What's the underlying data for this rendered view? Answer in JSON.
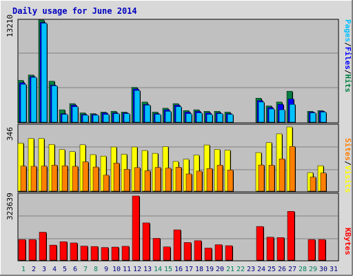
{
  "chart_data": {
    "type": "bar",
    "title": "Daily usage for June 2014",
    "colors": {
      "hits": "#008040",
      "files": "#0000ff",
      "pages": "#00c0ff",
      "visits": "#ffff00",
      "sites": "#ff8000",
      "kbytes": "#ff0000",
      "weekend_day": "#00805c",
      "weekday": "#000080",
      "panel_bg": "#c0c0c0",
      "frame_bg": "#d8d8d8"
    },
    "days": [
      {
        "label": "1",
        "weekend": true,
        "hits": 5400,
        "files": 5100,
        "pages": 4900,
        "visits": 259,
        "sites": 135,
        "kbytes": 104000
      },
      {
        "label": "2",
        "weekend": false,
        "hits": 6100,
        "files": 5900,
        "pages": 5800,
        "visits": 284,
        "sites": 134,
        "kbytes": 104000
      },
      {
        "label": "3",
        "weekend": false,
        "hits": 13210,
        "files": 12900,
        "pages": 12800,
        "visits": 284,
        "sites": 135,
        "kbytes": 141000
      },
      {
        "label": "4",
        "weekend": false,
        "hits": 5300,
        "files": 4800,
        "pages": 4700,
        "visits": 252,
        "sites": 140,
        "kbytes": 76000
      },
      {
        "label": "5",
        "weekend": false,
        "hits": 1600,
        "files": 1100,
        "pages": 1000,
        "visits": 224,
        "sites": 137,
        "kbytes": 93000
      },
      {
        "label": "6",
        "weekend": false,
        "hits": 2400,
        "files": 2200,
        "pages": 2000,
        "visits": 213,
        "sites": 134,
        "kbytes": 87000
      },
      {
        "label": "7",
        "weekend": true,
        "hits": 1200,
        "files": 1000,
        "pages": 900,
        "visits": 250,
        "sites": 158,
        "kbytes": 71000
      },
      {
        "label": "8",
        "weekend": true,
        "hits": 1100,
        "files": 1000,
        "pages": 900,
        "visits": 197,
        "sites": 130,
        "kbytes": 69000
      },
      {
        "label": "9",
        "weekend": false,
        "hits": 1300,
        "files": 1200,
        "pages": 1000,
        "visits": 189,
        "sites": 86,
        "kbytes": 64000
      },
      {
        "label": "10",
        "weekend": false,
        "hits": 1400,
        "files": 1200,
        "pages": 1100,
        "visits": 238,
        "sites": 151,
        "kbytes": 66000
      },
      {
        "label": "11",
        "weekend": false,
        "hits": 1300,
        "files": 1200,
        "pages": 1100,
        "visits": 199,
        "sites": 118,
        "kbytes": 70000
      },
      {
        "label": "12",
        "weekend": false,
        "hits": 4500,
        "files": 4300,
        "pages": 4100,
        "visits": 238,
        "sites": 127,
        "kbytes": 323639
      },
      {
        "label": "13",
        "weekend": false,
        "hits": 2600,
        "files": 2300,
        "pages": 2200,
        "visits": 219,
        "sites": 110,
        "kbytes": 188000
      },
      {
        "label": "14",
        "weekend": true,
        "hits": 1300,
        "files": 1100,
        "pages": 1000,
        "visits": 204,
        "sites": 128,
        "kbytes": 110000
      },
      {
        "label": "15",
        "weekend": true,
        "hits": 1800,
        "files": 1600,
        "pages": 1400,
        "visits": 240,
        "sites": 124,
        "kbytes": 67000
      },
      {
        "label": "16",
        "weekend": false,
        "hits": 2400,
        "files": 2200,
        "pages": 2000,
        "visits": 160,
        "sites": 129,
        "kbytes": 153000
      },
      {
        "label": "17",
        "weekend": false,
        "hits": 1500,
        "files": 1300,
        "pages": 1100,
        "visits": 172,
        "sites": 93,
        "kbytes": 89000
      },
      {
        "label": "18",
        "weekend": false,
        "hits": 1600,
        "files": 1400,
        "pages": 1200,
        "visits": 194,
        "sites": 108,
        "kbytes": 98000
      },
      {
        "label": "19",
        "weekend": false,
        "hits": 1400,
        "files": 1200,
        "pages": 1000,
        "visits": 249,
        "sites": 122,
        "kbytes": 61000
      },
      {
        "label": "20",
        "weekend": false,
        "hits": 1400,
        "files": 1200,
        "pages": 1100,
        "visits": 225,
        "sites": 140,
        "kbytes": 78000
      },
      {
        "label": "21",
        "weekend": true,
        "hits": 1300,
        "files": 1100,
        "pages": 1000,
        "visits": 221,
        "sites": 114,
        "kbytes": 73000
      },
      {
        "label": "22",
        "weekend": true,
        "hits": 0,
        "files": 0,
        "pages": 0,
        "visits": 0,
        "sites": 0,
        "kbytes": 0
      },
      {
        "label": "23",
        "weekend": false,
        "hits": 0,
        "files": 0,
        "pages": 0,
        "visits": 0,
        "sites": 0,
        "kbytes": 0
      },
      {
        "label": "24",
        "weekend": false,
        "hits": 3100,
        "files": 2800,
        "pages": 2600,
        "visits": 208,
        "sites": 141,
        "kbytes": 170000
      },
      {
        "label": "25",
        "weekend": false,
        "hits": 2100,
        "files": 1900,
        "pages": 1700,
        "visits": 262,
        "sites": 140,
        "kbytes": 116000
      },
      {
        "label": "26",
        "weekend": false,
        "hits": 2600,
        "files": 2300,
        "pages": 1600,
        "visits": 309,
        "sites": 174,
        "kbytes": 114000
      },
      {
        "label": "27",
        "weekend": false,
        "hits": 4000,
        "files": 3000,
        "pages": 2300,
        "visits": 346,
        "sites": 241,
        "kbytes": 246000
      },
      {
        "label": "28",
        "weekend": true,
        "hits": 0,
        "files": 0,
        "pages": 0,
        "visits": 0,
        "sites": 0,
        "kbytes": 0
      },
      {
        "label": "29",
        "weekend": true,
        "hits": 1400,
        "files": 1300,
        "pages": 1200,
        "visits": 100,
        "sites": 76,
        "kbytes": 104000
      },
      {
        "label": "30",
        "weekend": false,
        "hits": 1500,
        "files": 1400,
        "pages": 1300,
        "visits": 137,
        "sites": 98,
        "kbytes": 104000
      },
      {
        "label": "31",
        "weekend": false,
        "hits": 0,
        "files": 0,
        "pages": 0,
        "visits": 0,
        "sites": 0,
        "kbytes": 0
      }
    ],
    "panels": {
      "top": {
        "max": 13210,
        "max_label": "13210",
        "legend": [
          "Pages",
          "/",
          "Files",
          "/",
          "Hits"
        ]
      },
      "middle": {
        "max": 346,
        "max_label": "346",
        "legend": [
          "Sites",
          "/",
          "Visits"
        ]
      },
      "bottom": {
        "max": 323639,
        "max_label": "323639",
        "legend": [
          "KBytes"
        ]
      }
    }
  }
}
